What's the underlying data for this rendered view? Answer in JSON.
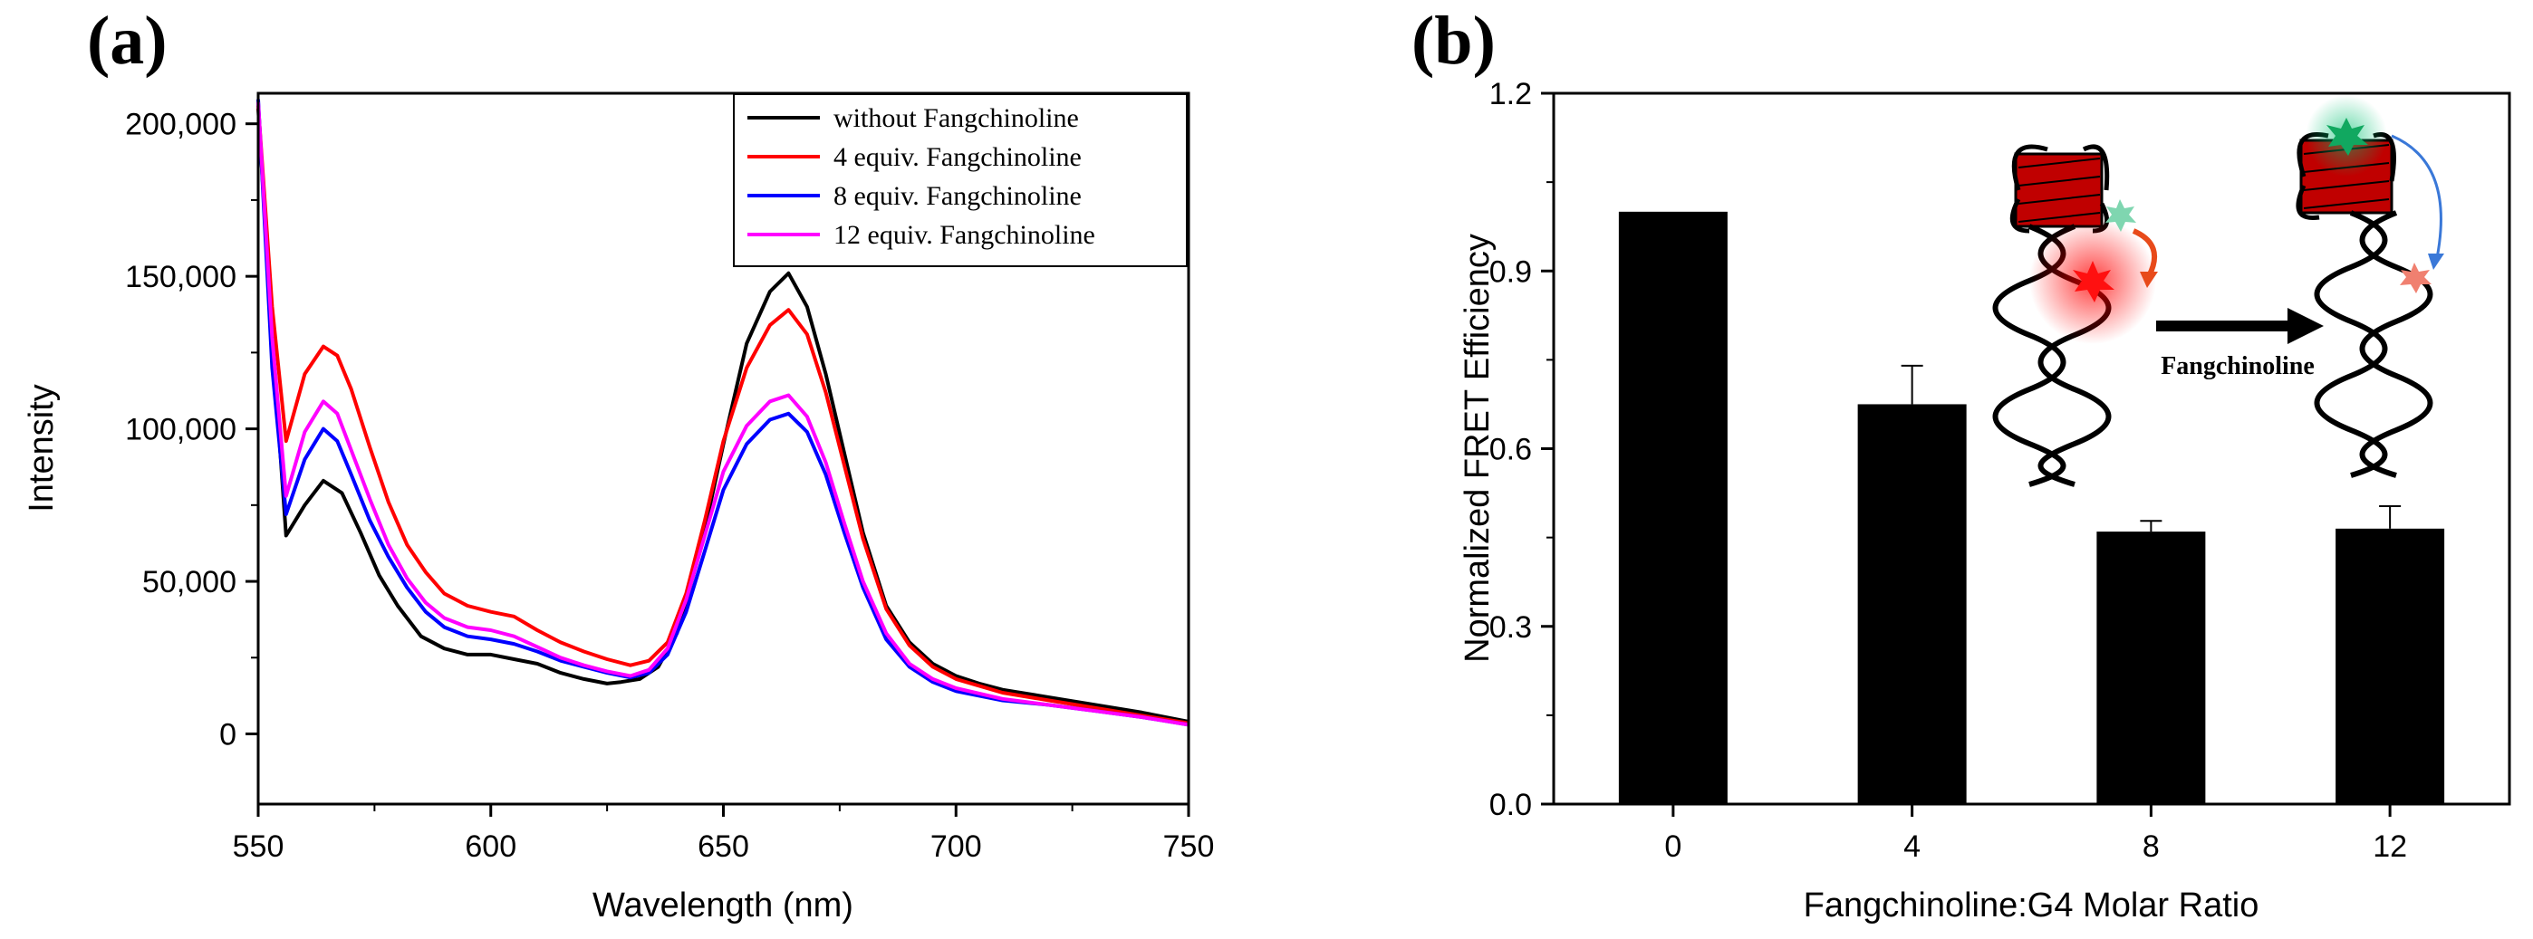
{
  "chart_data": [
    {
      "panel": "(a)",
      "type": "line",
      "xlabel": "Wavelength (nm)",
      "ylabel": "Intensity",
      "xlim": [
        550,
        750
      ],
      "ylim": [
        -23000,
        210000
      ],
      "xticks": [
        "550",
        "600",
        "650",
        "700",
        "750"
      ],
      "yticks": [
        "0",
        "50,000",
        "100,000",
        "150,000",
        "200,000"
      ],
      "legend_position": "top-right",
      "series": [
        {
          "name": "without Fangchinoline",
          "color": "#000000",
          "x": [
            550,
            553,
            556,
            560,
            564,
            568,
            572,
            576,
            580,
            585,
            590,
            595,
            600,
            605,
            610,
            615,
            620,
            625,
            628,
            632,
            636,
            640,
            645,
            650,
            655,
            660,
            664,
            668,
            672,
            676,
            680,
            685,
            690,
            695,
            700,
            705,
            710,
            720,
            730,
            740,
            750
          ],
          "y": [
            205000,
            130000,
            65000,
            75000,
            83000,
            79000,
            66000,
            52000,
            42000,
            32000,
            28000,
            26000,
            26000,
            24500,
            23000,
            20000,
            18000,
            16500,
            17000,
            18000,
            22000,
            33000,
            60000,
            95000,
            128000,
            145000,
            151000,
            140000,
            118000,
            92000,
            66000,
            42000,
            30000,
            23000,
            19000,
            16500,
            14500,
            12000,
            9500,
            7000,
            4000
          ]
        },
        {
          "name": "4 equiv. Fangchinoline",
          "color": "#ff0000",
          "x": [
            550,
            553,
            556,
            560,
            564,
            567,
            570,
            574,
            578,
            582,
            586,
            590,
            595,
            600,
            605,
            610,
            615,
            620,
            625,
            630,
            634,
            638,
            642,
            646,
            650,
            655,
            660,
            664,
            668,
            672,
            676,
            680,
            685,
            690,
            695,
            700,
            710,
            720,
            730,
            740,
            750
          ],
          "y": [
            206000,
            140000,
            96000,
            118000,
            127000,
            124000,
            113000,
            94000,
            76000,
            62000,
            53000,
            46000,
            42000,
            40000,
            38500,
            34000,
            30000,
            27000,
            24500,
            22500,
            24000,
            30000,
            46000,
            70000,
            96000,
            120000,
            134000,
            139000,
            131000,
            112000,
            88000,
            64000,
            41000,
            29000,
            22000,
            18000,
            13500,
            11000,
            8500,
            6000,
            3500
          ]
        },
        {
          "name": "8 equiv. Fangchinoline",
          "color": "#0000ff",
          "x": [
            550,
            553,
            556,
            560,
            564,
            567,
            570,
            574,
            578,
            582,
            586,
            590,
            595,
            600,
            605,
            610,
            615,
            620,
            625,
            630,
            634,
            638,
            642,
            646,
            650,
            655,
            660,
            664,
            668,
            672,
            676,
            680,
            685,
            690,
            695,
            700,
            710,
            720,
            730,
            740,
            750
          ],
          "y": [
            208000,
            120000,
            72000,
            90000,
            100000,
            96000,
            85000,
            70000,
            58000,
            48000,
            40000,
            35000,
            32000,
            31000,
            29500,
            27000,
            24000,
            22000,
            20000,
            18500,
            20000,
            26000,
            40000,
            60000,
            80000,
            95000,
            103000,
            105000,
            99000,
            85000,
            66000,
            48000,
            31000,
            22000,
            17000,
            14000,
            11000,
            9500,
            7500,
            5500,
            3000
          ]
        },
        {
          "name": "12 equiv. Fangchinoline",
          "color": "#ff00ff",
          "x": [
            550,
            553,
            556,
            560,
            564,
            567,
            570,
            574,
            578,
            582,
            586,
            590,
            595,
            600,
            605,
            610,
            615,
            620,
            625,
            630,
            634,
            638,
            642,
            646,
            650,
            655,
            660,
            664,
            668,
            672,
            676,
            680,
            685,
            690,
            695,
            700,
            710,
            720,
            730,
            740,
            750
          ],
          "y": [
            207000,
            130000,
            78000,
            99000,
            109000,
            105000,
            93000,
            77000,
            62000,
            51000,
            43000,
            38000,
            35000,
            34000,
            32000,
            28500,
            25000,
            22500,
            20500,
            19000,
            21000,
            28000,
            44000,
            65000,
            86000,
            101000,
            109000,
            111000,
            104000,
            89000,
            69000,
            50000,
            33000,
            23000,
            18000,
            15000,
            11500,
            9500,
            7500,
            5500,
            3000
          ]
        }
      ]
    },
    {
      "panel": "(b)",
      "type": "bar",
      "xlabel": "Fangchinoline:G4 Molar Ratio",
      "ylabel": "Normalized FRET Efficiency",
      "ylim": [
        0,
        1.2
      ],
      "yticks": [
        "0.0",
        "0.3",
        "0.6",
        "0.9",
        "1.2"
      ],
      "categories": [
        "0",
        "4",
        "8",
        "12"
      ],
      "values": [
        1.0,
        0.675,
        0.46,
        0.465
      ],
      "errors": [
        0,
        0.065,
        0.018,
        0.038
      ],
      "bar_color": "#000000",
      "inset_label": "Fangchinoline"
    }
  ]
}
